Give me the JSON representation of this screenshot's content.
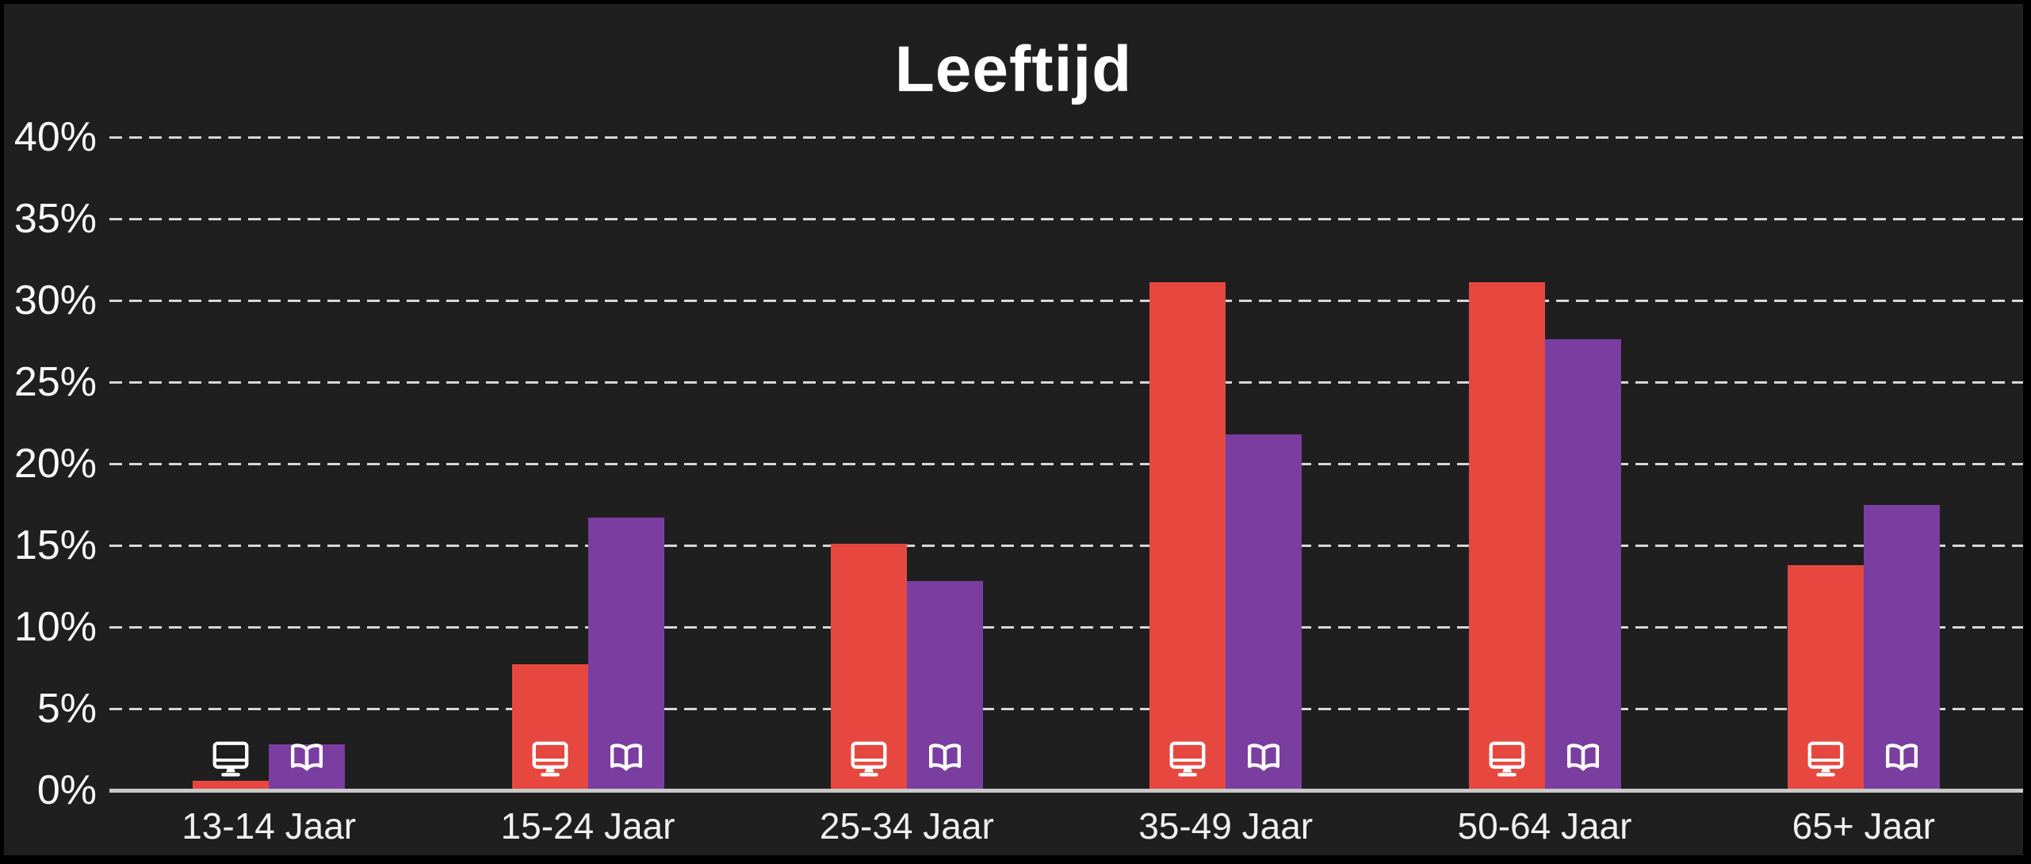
{
  "title": "Leeftijd",
  "colors": {
    "frame": "#000000",
    "background": "#1f1f20",
    "grid": "#d8d8d8",
    "axis": "#c9c9c9",
    "text": "#ffffff",
    "bar_red": "#e6483f",
    "bar_purple": "#7a3da0"
  },
  "chart_data": {
    "type": "bar",
    "title": "Leeftijd",
    "categories": [
      "13-14 Jaar",
      "15-24 Jaar",
      "25-34 Jaar",
      "35-49 Jaar",
      "50-64 Jaar",
      "65+ Jaar"
    ],
    "series": [
      {
        "name": "monitor",
        "icon": "monitor-icon",
        "color": "#e6483f",
        "values": [
          0.6,
          7.7,
          15.1,
          31.1,
          31.1,
          13.8
        ]
      },
      {
        "name": "open-book",
        "icon": "open-book-icon",
        "color": "#7a3da0",
        "values": [
          2.8,
          16.7,
          12.8,
          21.8,
          27.6,
          17.5
        ]
      }
    ],
    "ylim": [
      0,
      40
    ],
    "ytick_step": 5,
    "yticks": [
      "0%",
      "5%",
      "10%",
      "15%",
      "20%",
      "25%",
      "30%",
      "35%",
      "40%"
    ],
    "xlabel": "",
    "ylabel": "",
    "grid": "horizontal-dashed",
    "legend": "none"
  }
}
